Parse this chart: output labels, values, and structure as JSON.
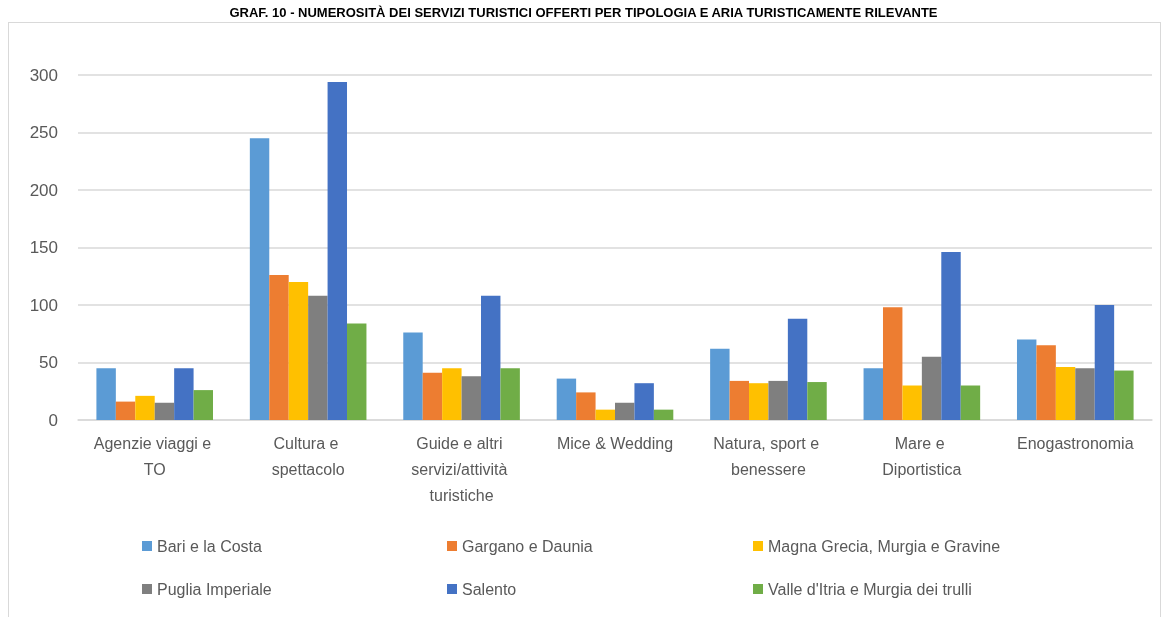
{
  "chart_data": {
    "type": "bar",
    "title": "GRAF. 10 - NUMEROSITÀ DEI SERVIZI TURISTICI OFFERTI PER TIPOLOGIA E ARIA TURISTICAMENTE RILEVANTE",
    "categories": [
      "Agenzie viaggi e TO",
      "Cultura e spettacolo",
      "Guide e altri servizi/attività turistiche",
      "Mice & Wedding",
      "Natura, sport e benessere",
      "Mare e Diportistica",
      "Enogastronomia"
    ],
    "series": [
      {
        "name": "Bari e la Costa",
        "color": "#5b9bd5",
        "values": [
          45,
          245,
          76,
          36,
          62,
          45,
          70
        ]
      },
      {
        "name": "Gargano e Daunia",
        "color": "#ed7d31",
        "values": [
          16,
          126,
          41,
          24,
          34,
          98,
          65
        ]
      },
      {
        "name": "Magna Grecia, Murgia e Gravine",
        "color": "#ffc000",
        "values": [
          21,
          120,
          45,
          9,
          32,
          30,
          46
        ]
      },
      {
        "name": "Puglia Imperiale",
        "color": "#7f7f7f",
        "values": [
          15,
          108,
          38,
          15,
          34,
          55,
          45
        ]
      },
      {
        "name": "Salento",
        "color": "#4472c4",
        "values": [
          45,
          294,
          108,
          32,
          88,
          146,
          100
        ]
      },
      {
        "name": "Valle d'Itria e Murgia dei trulli",
        "color": "#70ad47",
        "values": [
          26,
          84,
          45,
          9,
          33,
          30,
          43
        ]
      }
    ],
    "ylim": [
      0,
      300
    ],
    "yticks": [
      0,
      50,
      100,
      150,
      200,
      250,
      300
    ],
    "grid": "y",
    "legend": "bottom"
  }
}
